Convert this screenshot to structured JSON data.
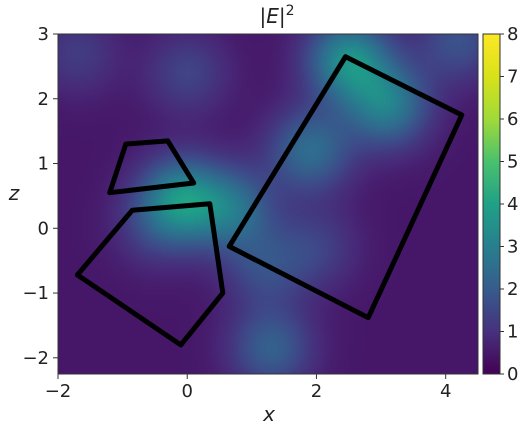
{
  "chart_data": {
    "type": "heatmap",
    "title": "|E|²",
    "title_parts": {
      "left_bar": "|",
      "var": "E",
      "right_bar": "|",
      "sup": "2"
    },
    "xlabel": "x",
    "ylabel": "z",
    "xlim": [
      -2,
      4.5
    ],
    "ylim": [
      -2.25,
      3
    ],
    "x_ticks": [
      -2,
      0,
      2,
      4
    ],
    "x_tick_labels": [
      "−2",
      "0",
      "2",
      "4"
    ],
    "y_ticks": [
      -2,
      -1,
      0,
      1,
      2,
      3
    ],
    "y_tick_labels": [
      "−2",
      "−1",
      "0",
      "1",
      "2",
      "3"
    ],
    "colorbar": {
      "min": 0,
      "max": 8,
      "ticks": [
        0,
        1,
        2,
        3,
        4,
        5,
        6,
        7,
        8
      ],
      "tick_labels": [
        "0",
        "1",
        "2",
        "3",
        "4",
        "5",
        "6",
        "7",
        "8"
      ],
      "colormap": "viridis"
    },
    "hotspots": [
      {
        "x": -0.1,
        "z": 0.45,
        "value": 3.8
      },
      {
        "x": 2.5,
        "z": 2.6,
        "value": 3.9
      },
      {
        "x": 3.1,
        "z": 1.9,
        "value": 3.3
      },
      {
        "x": 1.9,
        "z": 1.2,
        "value": 2.8
      },
      {
        "x": 0.7,
        "z": 0.3,
        "value": 2.8
      },
      {
        "x": 1.3,
        "z": -1.85,
        "value": 2.4
      },
      {
        "x": -1.7,
        "z": 2.7,
        "value": 1.4
      },
      {
        "x": -0.5,
        "z": 0.0,
        "value": 1.3
      },
      {
        "x": 1.2,
        "z": -0.6,
        "value": 1.8
      },
      {
        "x": 2.0,
        "z": -0.3,
        "value": 1.5
      },
      {
        "x": 4.2,
        "z": 2.9,
        "value": 2.0
      },
      {
        "x": 0.0,
        "z": 2.4,
        "value": 1.6
      }
    ],
    "background_value": 0.5,
    "polygons": [
      {
        "name": "small-quadrilateral",
        "points": [
          [
            -0.95,
            1.3
          ],
          [
            -0.3,
            1.35
          ],
          [
            0.1,
            0.7
          ],
          [
            -1.2,
            0.55
          ]
        ]
      },
      {
        "name": "pentagon",
        "points": [
          [
            -0.85,
            0.28
          ],
          [
            0.35,
            0.38
          ],
          [
            0.55,
            -1.0
          ],
          [
            -0.1,
            -1.8
          ],
          [
            -1.7,
            -0.72
          ]
        ]
      },
      {
        "name": "large-quadrilateral",
        "points": [
          [
            2.45,
            2.65
          ],
          [
            4.25,
            1.75
          ],
          [
            2.8,
            -1.38
          ],
          [
            0.65,
            -0.28
          ]
        ]
      }
    ]
  }
}
